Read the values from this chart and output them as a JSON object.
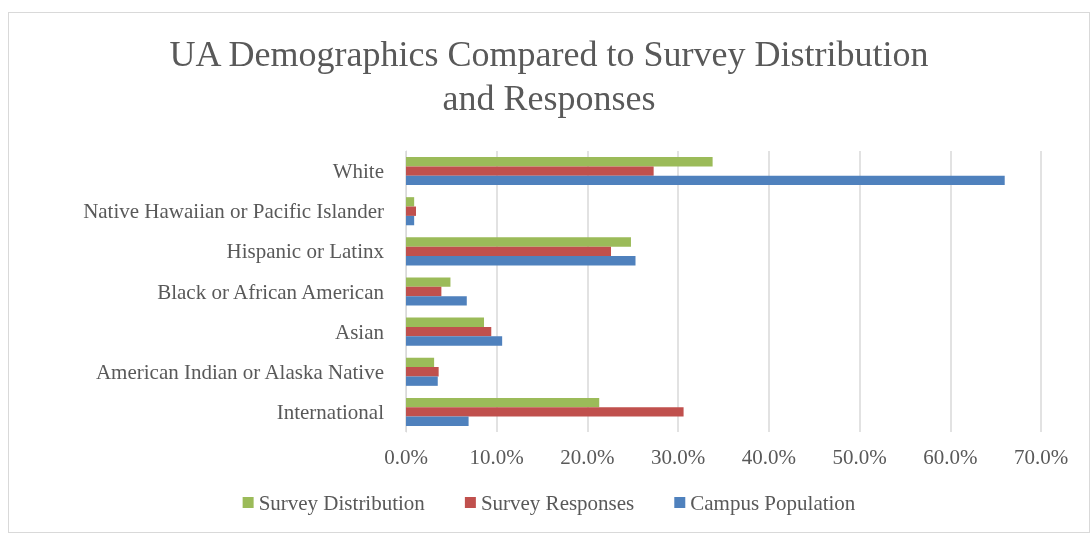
{
  "chart_data": {
    "type": "bar",
    "orientation": "horizontal",
    "title": "UA Demographics Compared to Survey Distribution\nand Responses",
    "categories": [
      "White",
      "Native Hawaiian or Pacific Islander",
      "Hispanic or Latinx",
      "Black or African American",
      "Asian",
      "American Indian or Alaska Native",
      "International"
    ],
    "series": [
      {
        "name": "Survey Distribution",
        "color": "#9bbb59",
        "values": [
          0.338,
          0.009,
          0.248,
          0.049,
          0.086,
          0.031,
          0.213
        ]
      },
      {
        "name": "Survey Responses",
        "color": "#c0504d",
        "values": [
          0.273,
          0.011,
          0.226,
          0.039,
          0.094,
          0.036,
          0.306
        ]
      },
      {
        "name": "Campus Population",
        "color": "#4f81bd",
        "values": [
          0.66,
          0.009,
          0.253,
          0.067,
          0.106,
          0.035,
          0.069
        ]
      }
    ],
    "xlim": [
      0,
      0.7
    ],
    "xticks": [
      {
        "value": 0,
        "label": "0.0%"
      },
      {
        "value": 0.1,
        "label": "10.0%"
      },
      {
        "value": 0.2,
        "label": "20.0%"
      },
      {
        "value": 0.3,
        "label": "30.0%"
      },
      {
        "value": 0.4,
        "label": "40.0%"
      },
      {
        "value": 0.5,
        "label": "50.0%"
      },
      {
        "value": 0.6,
        "label": "60.0%"
      },
      {
        "value": 0.7,
        "label": "70.0%"
      }
    ],
    "grid": "x",
    "legend": "bottom"
  }
}
